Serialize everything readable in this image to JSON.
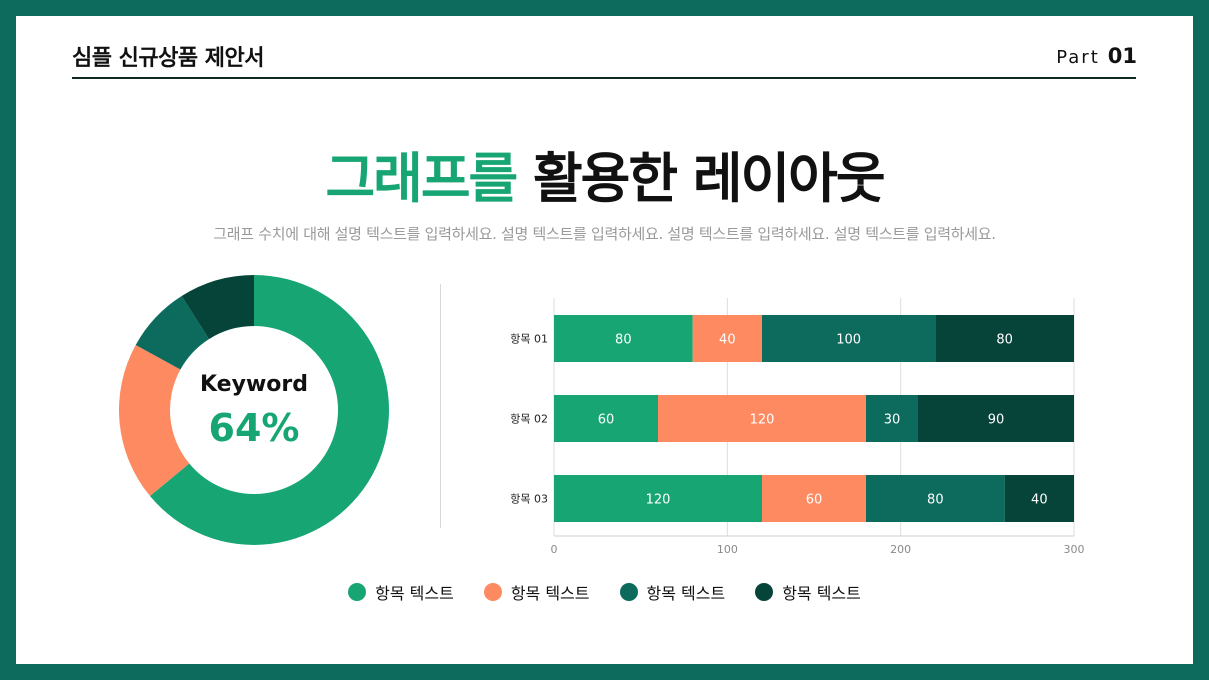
{
  "header": {
    "title": "심플 신규상품 제안서",
    "part_label": "Part",
    "part_number": "01"
  },
  "main": {
    "title_accent": "그래프를",
    "title_rest": " 활용한 레이아웃",
    "subtitle": "그래프 수치에 대해 설명 텍스트를 입력하세요. 설명 텍스트를 입력하세요. 설명 텍스트를 입력하세요. 설명 텍스트를 입력하세요."
  },
  "colors": {
    "s1": "#17a673",
    "s2": "#fe8a62",
    "s3": "#0d6b5e",
    "s4": "#06443a",
    "frame": "#0d6b5e"
  },
  "chart_data": [
    {
      "type": "pie",
      "donut": true,
      "center_label": "Keyword",
      "center_value": "64%",
      "slices": [
        {
          "value": 64,
          "color": "#17a673"
        },
        {
          "value": 19,
          "color": "#fe8a62"
        },
        {
          "value": 8,
          "color": "#0d6b5e"
        },
        {
          "value": 9,
          "color": "#06443a"
        }
      ]
    },
    {
      "type": "bar",
      "orientation": "horizontal",
      "stacked": true,
      "categories": [
        "항목 01",
        "항목 02",
        "항목 03"
      ],
      "series": [
        {
          "name": "항목 텍스트",
          "values": [
            80,
            60,
            120
          ],
          "color": "#17a673"
        },
        {
          "name": "항목 텍스트",
          "values": [
            40,
            120,
            60
          ],
          "color": "#fe8a62"
        },
        {
          "name": "항목 텍스트",
          "values": [
            100,
            30,
            80
          ],
          "color": "#0d6b5e"
        },
        {
          "name": "항목 텍스트",
          "values": [
            80,
            90,
            40
          ],
          "color": "#06443a"
        }
      ],
      "xlim": [
        0,
        300
      ],
      "xticks": [
        0,
        100,
        200,
        300
      ],
      "grid": true,
      "legend": "bottom-center"
    }
  ]
}
